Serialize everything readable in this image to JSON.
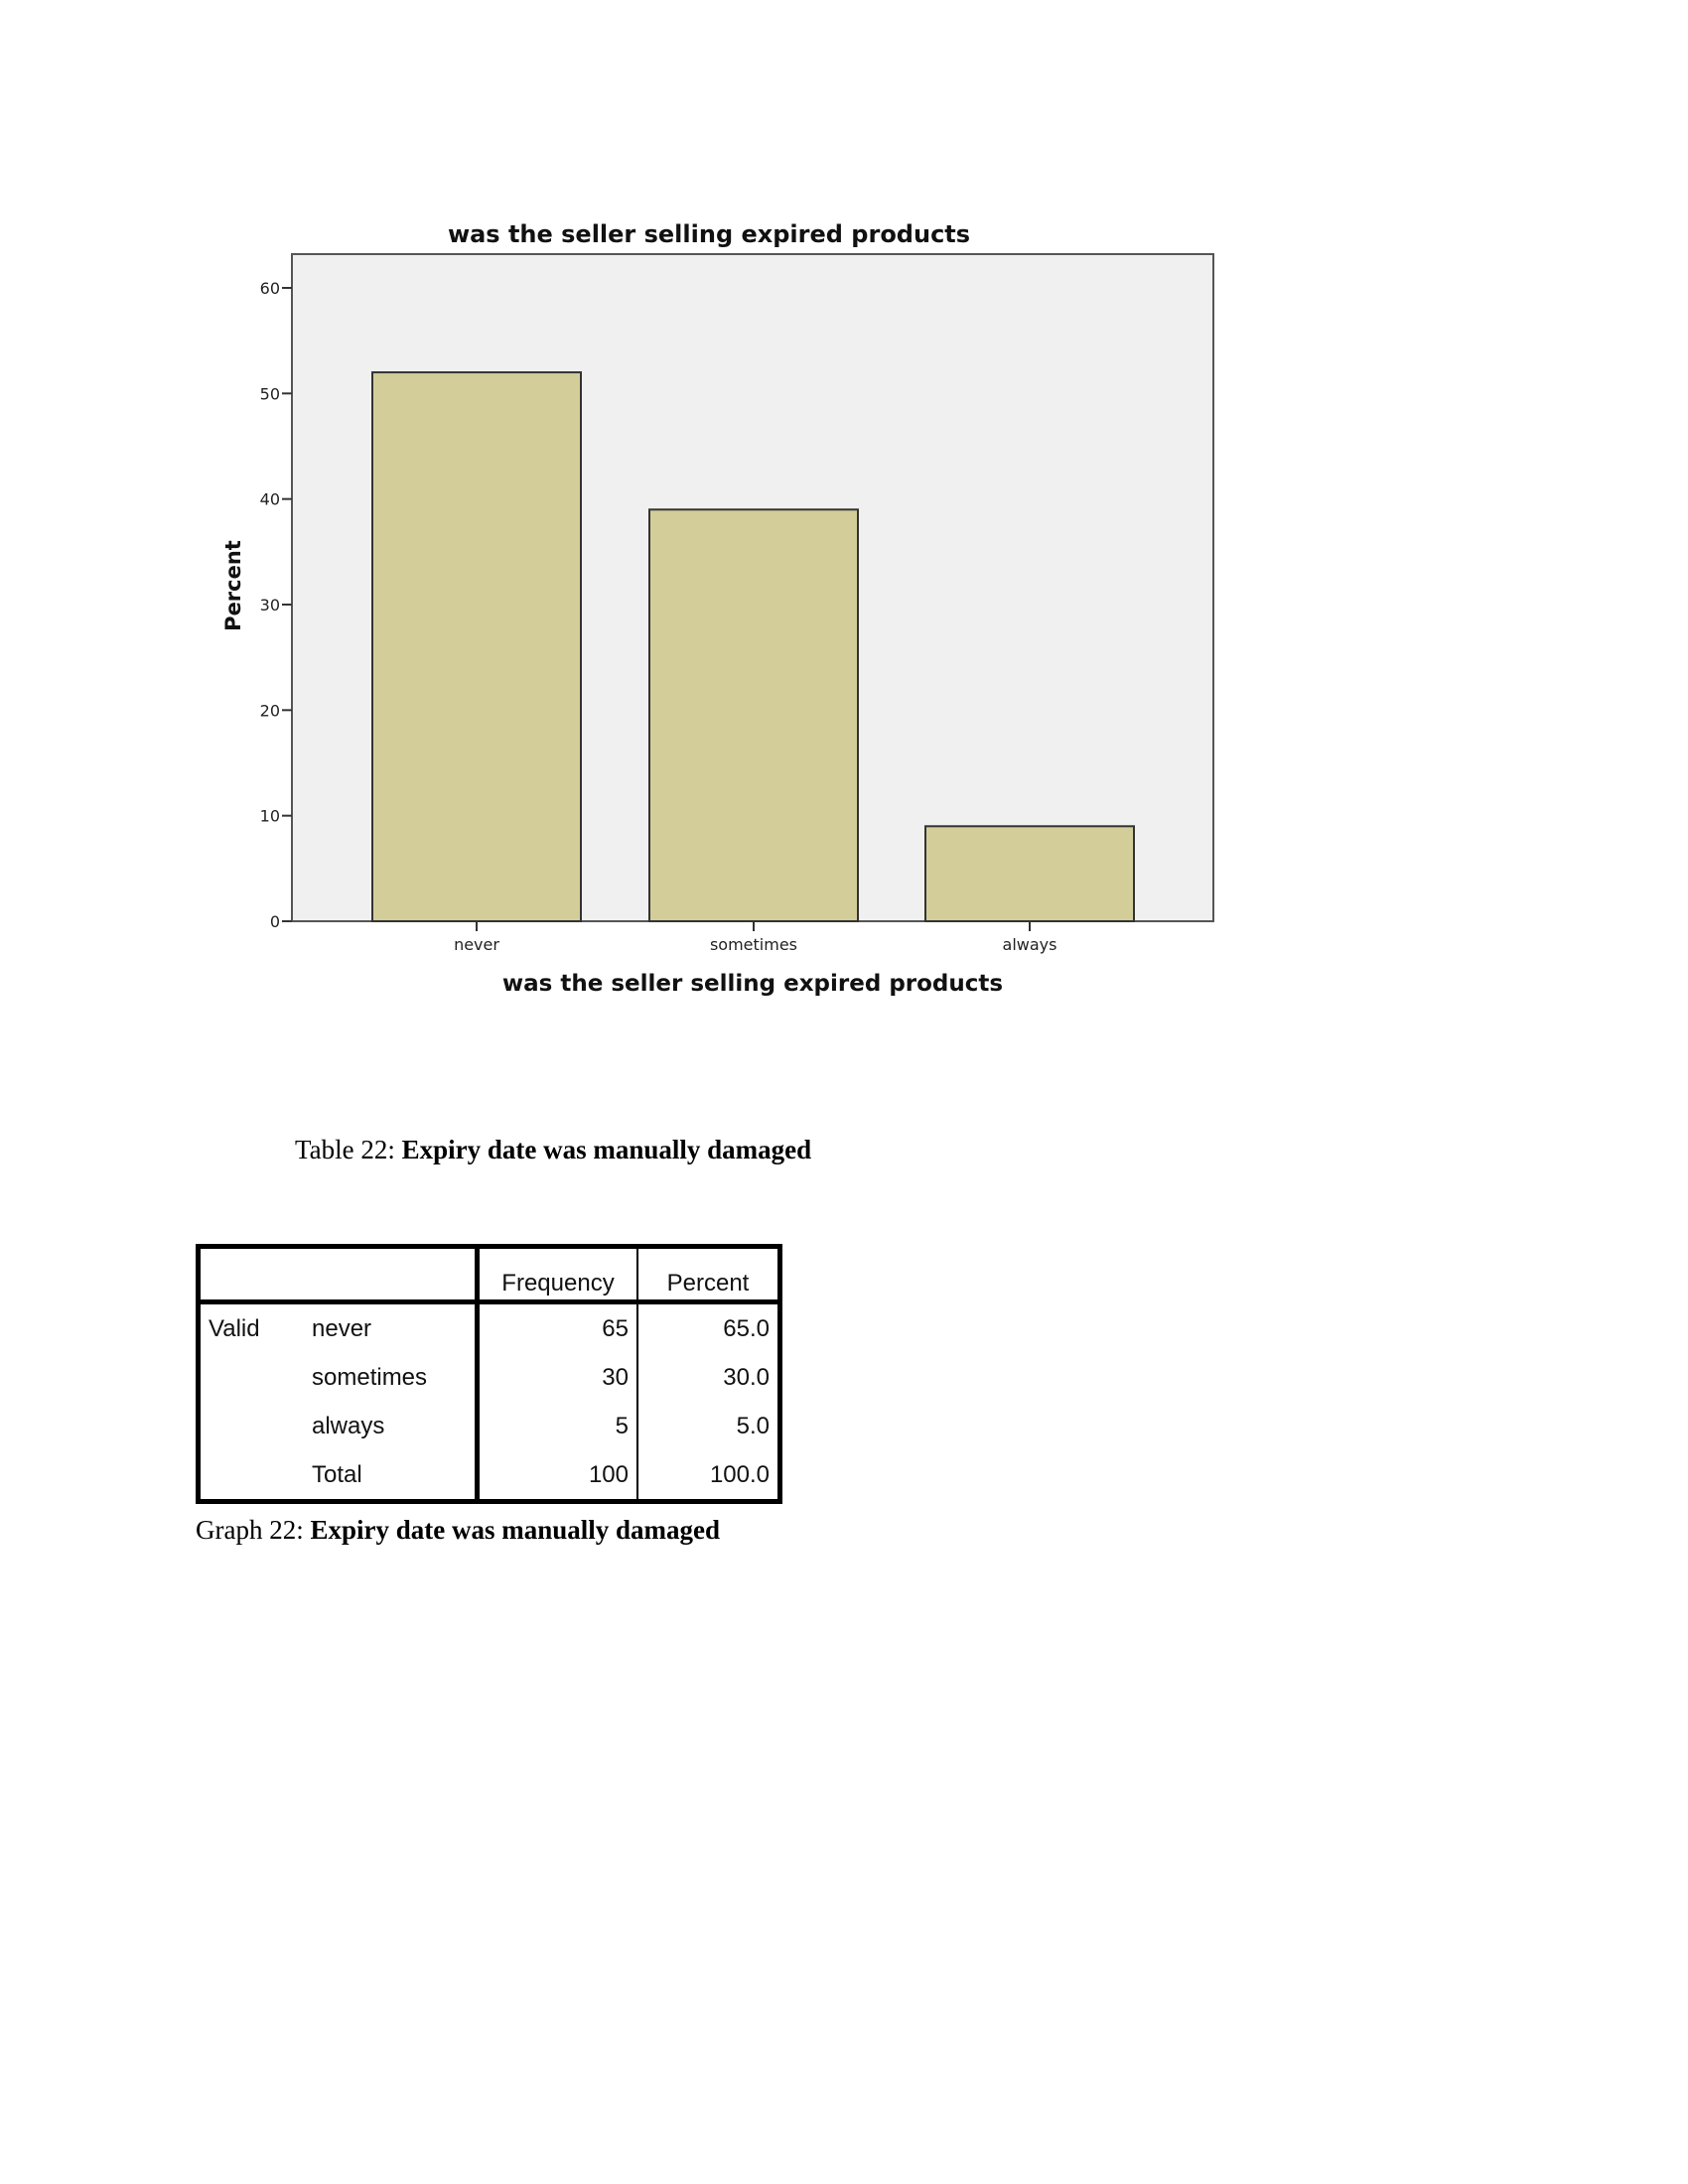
{
  "chart_data": {
    "type": "bar",
    "title": "was the seller selling expired products",
    "xlabel": "was the seller selling expired products",
    "ylabel": "Percent",
    "categories": [
      "never",
      "sometimes",
      "always"
    ],
    "values": [
      52,
      39,
      9
    ],
    "ylim": [
      0,
      63
    ],
    "yticks": [
      0,
      10,
      20,
      30,
      40,
      50,
      60
    ],
    "grid": false,
    "colors": {
      "bar": "#d3ce99",
      "plot_bg": "#f0f0f0",
      "outline": "#333333"
    }
  },
  "table_caption": {
    "prefix": "Table 22:",
    "title": "Expiry date was manually damaged"
  },
  "table": {
    "headers": [
      "",
      "",
      "Frequency",
      "Percent"
    ],
    "rows": [
      [
        "Valid",
        "never",
        "65",
        "65.0"
      ],
      [
        "",
        "sometimes",
        "30",
        "30.0"
      ],
      [
        "",
        "always",
        "5",
        "5.0"
      ],
      [
        "",
        "Total",
        "100",
        "100.0"
      ]
    ]
  },
  "graph_caption": {
    "prefix": "Graph 22:",
    "title": "Expiry date was manually damaged"
  }
}
